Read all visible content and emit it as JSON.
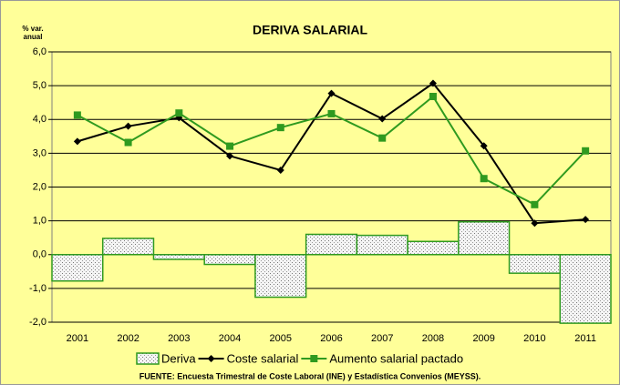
{
  "chart_data": {
    "type": "combo",
    "title": "DERIVA SALARIAL",
    "y_label": [
      "% var.",
      "anual"
    ],
    "source": "FUENTE: Encuesta Trimestral de Coste Laboral (INE) y Estadística Convenios (MEYSS).",
    "categories": [
      "2001",
      "2002",
      "2003",
      "2004",
      "2005",
      "2006",
      "2007",
      "2008",
      "2009",
      "2010",
      "2011"
    ],
    "series": [
      {
        "name": "Deriva",
        "type": "bar",
        "color": "#2f9a1f",
        "values": [
          -0.78,
          0.48,
          -0.14,
          -0.29,
          -1.26,
          0.6,
          0.57,
          0.39,
          0.97,
          -0.55,
          -2.03
        ]
      },
      {
        "name": "Coste salarial",
        "type": "line",
        "marker": "diamond",
        "color": "#000000",
        "values": [
          3.35,
          3.8,
          4.05,
          2.92,
          2.5,
          4.77,
          4.02,
          5.07,
          3.22,
          0.93,
          1.04
        ]
      },
      {
        "name": "Aumento salarial pactado",
        "type": "line",
        "marker": "square",
        "color": "#2f9a1f",
        "values": [
          4.13,
          3.32,
          4.19,
          3.21,
          3.76,
          4.17,
          3.45,
          4.68,
          2.25,
          1.48,
          3.07
        ]
      }
    ],
    "ylim": [
      -2,
      6
    ],
    "yticks": [
      {
        "value": -2,
        "label": "-2,0"
      },
      {
        "value": -1,
        "label": "-1,0"
      },
      {
        "value": 0,
        "label": "0,0"
      },
      {
        "value": 1,
        "label": "1,0"
      },
      {
        "value": 2,
        "label": "2,0"
      },
      {
        "value": 3,
        "label": "3,0"
      },
      {
        "value": 4,
        "label": "4,0"
      },
      {
        "value": 5,
        "label": "5,0"
      },
      {
        "value": 6,
        "label": "6,0"
      }
    ],
    "grid": true,
    "legend": "bottom",
    "background": "#ffff99"
  }
}
